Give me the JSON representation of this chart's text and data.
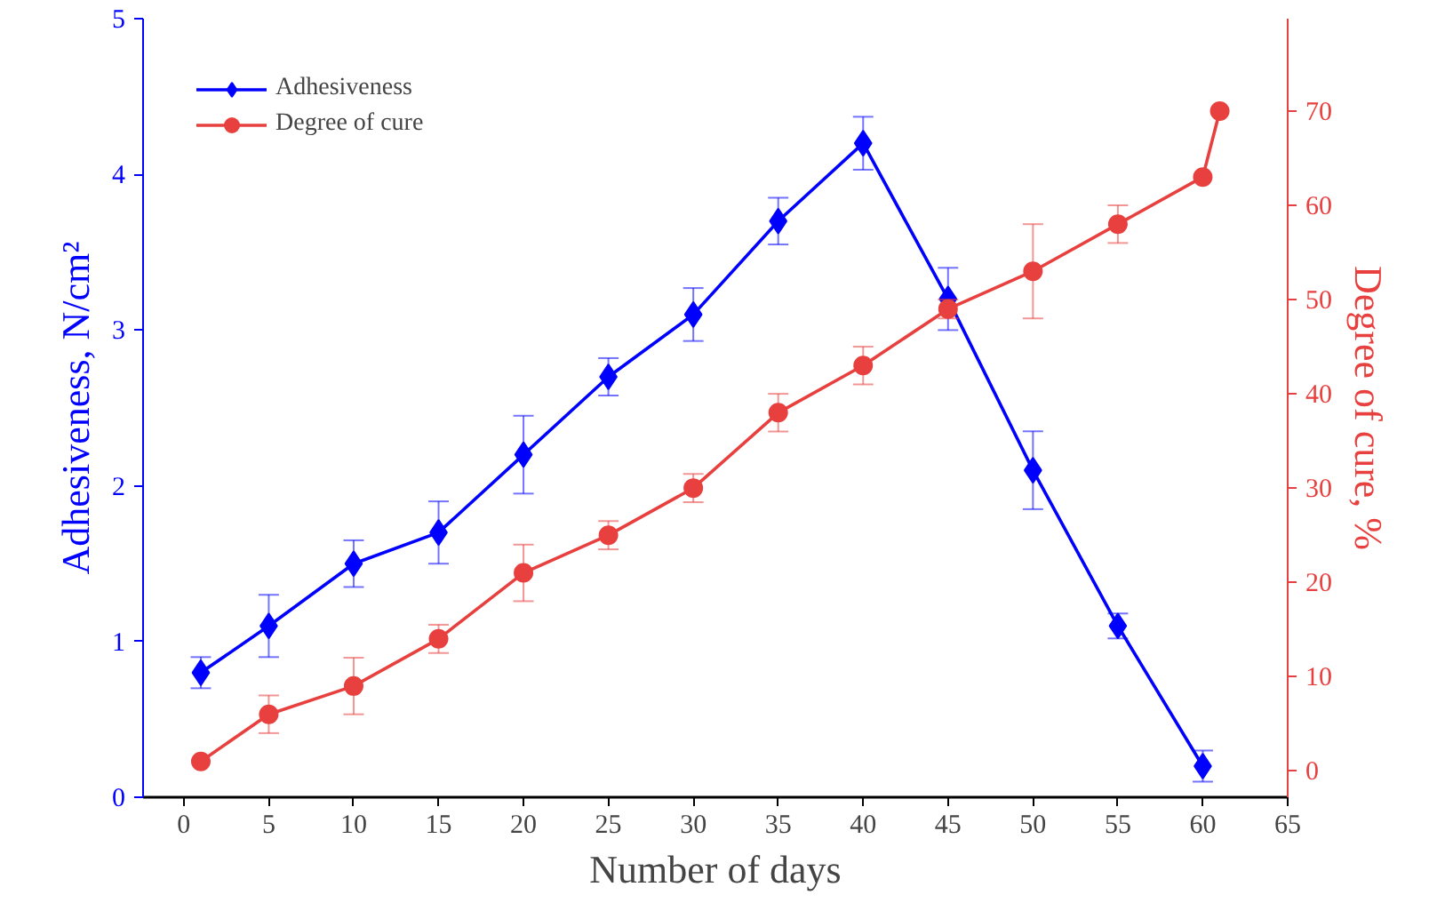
{
  "chart_data": {
    "type": "line",
    "xlabel": "Number of days",
    "ylabel": "Adhesiveness, N/cm²",
    "y2label": "Degree of cure, %",
    "xlim": [
      -2.4,
      65
    ],
    "xticks": [
      0,
      5,
      10,
      15,
      20,
      25,
      30,
      35,
      40,
      45,
      50,
      55,
      60,
      65
    ],
    "ylim": [
      0,
      5
    ],
    "yticks": [
      0,
      1,
      2,
      3,
      4,
      5
    ],
    "y2lim": [
      -2.8,
      79.8
    ],
    "y2ticks": [
      0,
      10,
      20,
      30,
      40,
      50,
      60,
      70
    ],
    "grid": false,
    "legend": "top left",
    "line_style": "solid",
    "series": [
      {
        "name": "Adhesiveness",
        "color": "#0000ff",
        "marker": "diamond",
        "x": [
          1,
          5,
          10,
          15,
          20,
          25,
          30,
          35,
          40,
          45,
          50,
          55,
          60
        ],
        "values": [
          0.8,
          1.1,
          1.5,
          1.7,
          2.2,
          2.7,
          3.1,
          3.7,
          4.2,
          3.2,
          2.1,
          1.1,
          0.2
        ],
        "errors": [
          0.1,
          0.2,
          0.15,
          0.2,
          0.25,
          0.12,
          0.17,
          0.15,
          0.17,
          0.2,
          0.25,
          0.08,
          0.1
        ]
      },
      {
        "name": "Degree of cure",
        "color": "#e8403e",
        "marker": "circle",
        "axis": "y2",
        "x": [
          1,
          5,
          10,
          15,
          20,
          25,
          30,
          35,
          40,
          45,
          50,
          55,
          60,
          61
        ],
        "values": [
          1,
          6,
          9,
          14,
          21,
          25,
          30,
          38,
          43,
          49,
          53,
          58,
          63,
          70
        ],
        "errors": [
          null,
          2,
          3,
          1.5,
          3,
          1.5,
          1.5,
          2,
          2,
          1,
          5,
          2,
          null,
          null
        ]
      }
    ]
  }
}
